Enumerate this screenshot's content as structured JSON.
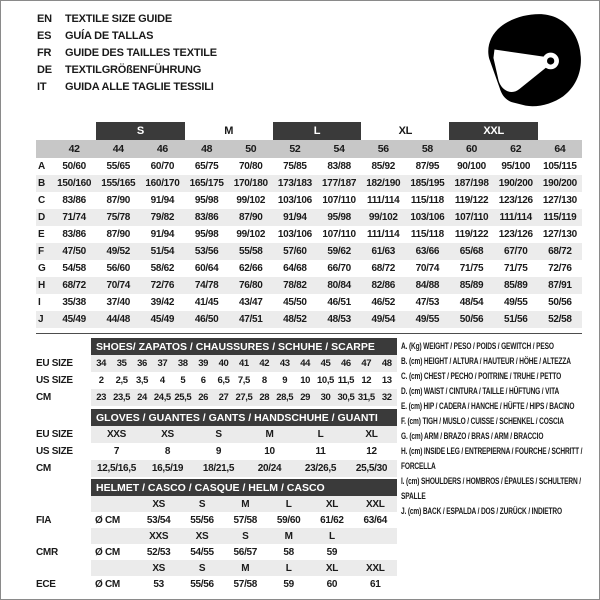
{
  "header": {
    "languages": [
      {
        "code": "EN",
        "title": "TEXTILE SIZE GUIDE"
      },
      {
        "code": "ES",
        "title": "GUÍA DE TALLAS"
      },
      {
        "code": "FR",
        "title": "GUIDE DES TAILLES TEXTILE"
      },
      {
        "code": "DE",
        "title": "TEXTILGRÖßENFÜHRUNG"
      },
      {
        "code": "IT",
        "title": "GUIDA ALLE TAGLIE TESSILI"
      }
    ],
    "helmet_icon": "racing-helmet-icon"
  },
  "colors": {
    "dark_bar": "#3a3a3a",
    "size_row_bg": "#c7c7c7",
    "stripe_bg": "#ececec",
    "text": "#1a1a1a"
  },
  "main_table": {
    "group_headers": [
      {
        "label": "S",
        "dark": true
      },
      {
        "label": "M",
        "dark": false
      },
      {
        "label": "L",
        "dark": true
      },
      {
        "label": "XL",
        "dark": false
      },
      {
        "label": "XXL",
        "dark": true
      }
    ],
    "sizes": [
      "42",
      "44",
      "46",
      "48",
      "50",
      "52",
      "54",
      "56",
      "58",
      "60",
      "62",
      "64"
    ],
    "rows": [
      {
        "key": "A",
        "values": [
          "50/60",
          "55/65",
          "60/70",
          "65/75",
          "70/80",
          "75/85",
          "83/88",
          "85/92",
          "87/95",
          "90/100",
          "95/100",
          "105/115"
        ]
      },
      {
        "key": "B",
        "values": [
          "150/160",
          "155/165",
          "160/170",
          "165/175",
          "170/180",
          "173/183",
          "177/187",
          "182/190",
          "185/195",
          "187/198",
          "190/200",
          "190/200"
        ]
      },
      {
        "key": "C",
        "values": [
          "83/86",
          "87/90",
          "91/94",
          "95/98",
          "99/102",
          "103/106",
          "107/110",
          "111/114",
          "115/118",
          "119/122",
          "123/126",
          "127/130"
        ]
      },
      {
        "key": "D",
        "values": [
          "71/74",
          "75/78",
          "79/82",
          "83/86",
          "87/90",
          "91/94",
          "95/98",
          "99/102",
          "103/106",
          "107/110",
          "111/114",
          "115/119"
        ]
      },
      {
        "key": "E",
        "values": [
          "83/86",
          "87/90",
          "91/94",
          "95/98",
          "99/102",
          "103/106",
          "107/110",
          "111/114",
          "115/118",
          "119/122",
          "123/126",
          "127/130"
        ]
      },
      {
        "key": "F",
        "values": [
          "47/50",
          "49/52",
          "51/54",
          "53/56",
          "55/58",
          "57/60",
          "59/62",
          "61/63",
          "63/66",
          "65/68",
          "67/70",
          "68/72"
        ]
      },
      {
        "key": "G",
        "values": [
          "54/58",
          "56/60",
          "58/62",
          "60/64",
          "62/66",
          "64/68",
          "66/70",
          "68/72",
          "70/74",
          "71/75",
          "71/75",
          "72/76"
        ]
      },
      {
        "key": "H",
        "values": [
          "68/72",
          "70/74",
          "72/76",
          "74/78",
          "76/80",
          "78/82",
          "80/84",
          "82/86",
          "84/88",
          "85/89",
          "85/89",
          "87/91"
        ]
      },
      {
        "key": "I",
        "values": [
          "35/38",
          "37/40",
          "39/42",
          "41/45",
          "43/47",
          "45/50",
          "46/51",
          "46/52",
          "47/53",
          "48/54",
          "49/55",
          "50/56"
        ]
      },
      {
        "key": "J",
        "values": [
          "45/49",
          "44/48",
          "45/49",
          "46/50",
          "47/51",
          "48/52",
          "48/53",
          "49/54",
          "49/55",
          "50/56",
          "51/56",
          "52/58"
        ]
      }
    ]
  },
  "shoes_table": {
    "title": "SHOES/ ZAPATOS / CHAUSSURES / SCHUHE / SCARPE",
    "rows": [
      {
        "label": "EU SIZE",
        "shaded": true,
        "values": [
          "34",
          "35",
          "36",
          "37",
          "38",
          "39",
          "40",
          "41",
          "42",
          "43",
          "44",
          "45",
          "46",
          "47",
          "48"
        ]
      },
      {
        "label": "US SIZE",
        "shaded": false,
        "values": [
          "2",
          "2,5",
          "3,5",
          "4",
          "5",
          "6",
          "6,5",
          "7,5",
          "8",
          "9",
          "10",
          "10,5",
          "11,5",
          "12",
          "13"
        ]
      },
      {
        "label": "CM",
        "shaded": true,
        "values": [
          "23",
          "23,5",
          "24",
          "24,5",
          "25,5",
          "26",
          "27",
          "27,5",
          "28",
          "28,5",
          "29",
          "30",
          "30,5",
          "31,5",
          "32"
        ]
      }
    ]
  },
  "gloves_table": {
    "title": "GLOVES / GUANTES / GANTS / HANDSCHUHE / GUANTI",
    "rows": [
      {
        "label": "EU SIZE",
        "shaded": true,
        "values": [
          "XXS",
          "XS",
          "S",
          "M",
          "L",
          "XL"
        ]
      },
      {
        "label": "US SIZE",
        "shaded": false,
        "values": [
          "7",
          "8",
          "9",
          "10",
          "11",
          "12"
        ]
      },
      {
        "label": "CM",
        "shaded": true,
        "values": [
          "12,5/16,5",
          "16,5/19",
          "18/21,5",
          "20/24",
          "23/26,5",
          "25,5/30"
        ]
      }
    ]
  },
  "helmet_table": {
    "title": "HELMET / CASCO / CASQUE / HELM / CASCO",
    "rows": [
      {
        "label": "",
        "unit": "",
        "shaded": true,
        "values": [
          "XS",
          "S",
          "M",
          "L",
          "XL",
          "XXL"
        ]
      },
      {
        "label": "FIA",
        "unit": "Ø CM",
        "shaded": false,
        "values": [
          "53/54",
          "55/56",
          "57/58",
          "59/60",
          "61/62",
          "63/64"
        ]
      },
      {
        "label": "",
        "unit": "",
        "shaded": true,
        "values": [
          "XXS",
          "XS",
          "S",
          "M",
          "L",
          ""
        ]
      },
      {
        "label": "CMR",
        "unit": "Ø CM",
        "shaded": false,
        "values": [
          "52/53",
          "54/55",
          "56/57",
          "58",
          "59",
          ""
        ]
      },
      {
        "label": "",
        "unit": "",
        "shaded": true,
        "values": [
          "XS",
          "S",
          "M",
          "L",
          "XL",
          "XXL"
        ]
      },
      {
        "label": "ECE",
        "unit": "Ø CM",
        "shaded": false,
        "values": [
          "53",
          "55/56",
          "57/58",
          "59",
          "60",
          "61"
        ]
      }
    ]
  },
  "legend": {
    "items": [
      "A. (Kg) WEIGHT / PESO / POIDS / GEWITCH / PESO",
      "B. (cm) HEIGHT / ALTURA / HAUTEUR / HÖHE / ALTEZZA",
      "C. (cm) CHEST / PECHO / POITRINE / TRUHE / PETTO",
      "D. (cm) WAIST / CINTURA / TAILLE / HÜFTUNG / VITA",
      "E. (cm) HIP / CADERA / HANCHE / HÜFTE / HIPS /  BACINO",
      "F. (cm) TIGH / MUSLO / CUISSE / SCHENKEL / COSCIA",
      "G. (cm) ARM  / BRAZO / BRAS / ARM / BRACCIO",
      "H. (cm) INSIDE LEG / ENTREPIERNA / FOURCHE / SCHRITT / FORCELLA",
      "I.  (cm) SHOULDERS / HOMBROS / ÉPAULES / SCHULTERN / SPALLE",
      "J. (cm) BACK / ESPALDA / DOS / ZURÜCK / INDIETRO"
    ]
  }
}
